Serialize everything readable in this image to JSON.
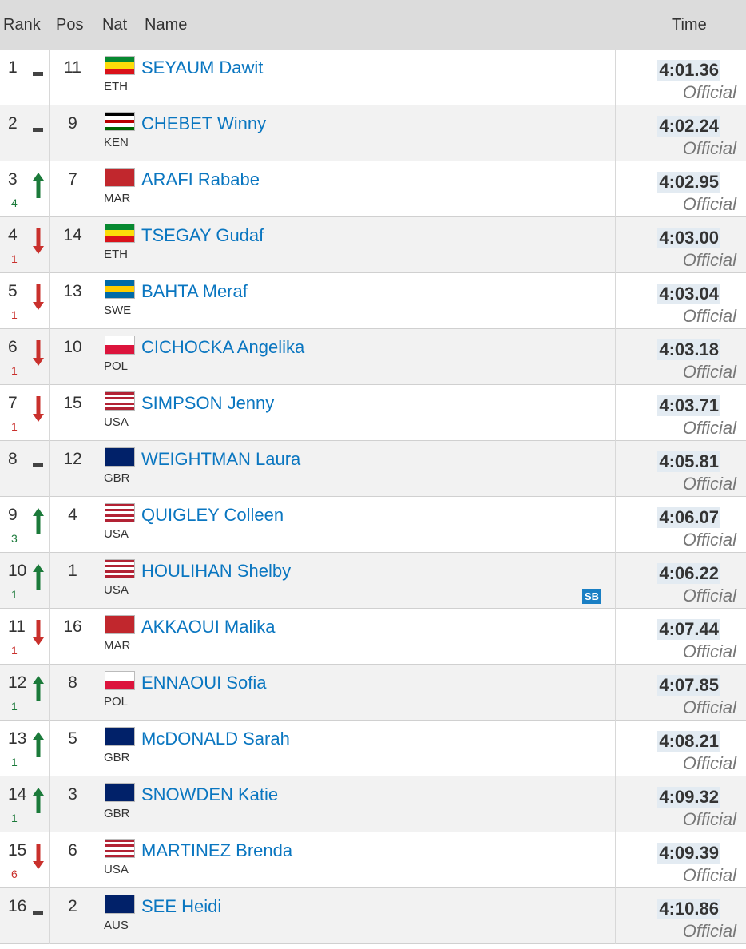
{
  "header": {
    "rank": "Rank",
    "pos": "Pos",
    "nat": "Nat",
    "name": "Name",
    "time": "Time"
  },
  "rows": [
    {
      "rank": 1,
      "trend": "same",
      "pos": 11,
      "nat": "ETH",
      "flag": [
        "#078930",
        "#fcdd09",
        "#da121a"
      ],
      "name": "SEYAUM Dawit",
      "time": "4:01.36",
      "status": "Official"
    },
    {
      "rank": 2,
      "trend": "same",
      "pos": 9,
      "nat": "KEN",
      "flag": [
        "#000000",
        "#ffffff",
        "#bb0000",
        "#ffffff",
        "#006600"
      ],
      "name": "CHEBET Winny",
      "time": "4:02.24",
      "status": "Official"
    },
    {
      "rank": 3,
      "trend": "up",
      "change": 4,
      "pos": 7,
      "nat": "MAR",
      "flag": [
        "#c1272d"
      ],
      "name": "ARAFI Rababe",
      "time": "4:02.95",
      "status": "Official"
    },
    {
      "rank": 4,
      "trend": "down",
      "change": 1,
      "pos": 14,
      "nat": "ETH",
      "flag": [
        "#078930",
        "#fcdd09",
        "#da121a"
      ],
      "name": "TSEGAY Gudaf",
      "time": "4:03.00",
      "status": "Official"
    },
    {
      "rank": 5,
      "trend": "down",
      "change": 1,
      "pos": 13,
      "nat": "SWE",
      "flag": [
        "#006aa7",
        "#fecc00",
        "#006aa7"
      ],
      "name": "BAHTA Meraf",
      "time": "4:03.04",
      "status": "Official"
    },
    {
      "rank": 6,
      "trend": "down",
      "change": 1,
      "pos": 10,
      "nat": "POL",
      "flag": [
        "#ffffff",
        "#dc143c"
      ],
      "name": "CICHOCKA Angelika",
      "time": "4:03.18",
      "status": "Official"
    },
    {
      "rank": 7,
      "trend": "down",
      "change": 1,
      "pos": 15,
      "nat": "USA",
      "flag": [
        "#b22234",
        "#ffffff",
        "#b22234",
        "#ffffff",
        "#b22234",
        "#ffffff",
        "#b22234"
      ],
      "name": "SIMPSON Jenny",
      "time": "4:03.71",
      "status": "Official"
    },
    {
      "rank": 8,
      "trend": "same",
      "pos": 12,
      "nat": "GBR",
      "flag": [
        "#012169"
      ],
      "name": "WEIGHTMAN Laura",
      "time": "4:05.81",
      "status": "Official"
    },
    {
      "rank": 9,
      "trend": "up",
      "change": 3,
      "pos": 4,
      "nat": "USA",
      "flag": [
        "#b22234",
        "#ffffff",
        "#b22234",
        "#ffffff",
        "#b22234",
        "#ffffff",
        "#b22234"
      ],
      "name": "QUIGLEY Colleen",
      "time": "4:06.07",
      "status": "Official"
    },
    {
      "rank": 10,
      "trend": "up",
      "change": 1,
      "pos": 1,
      "nat": "USA",
      "flag": [
        "#b22234",
        "#ffffff",
        "#b22234",
        "#ffffff",
        "#b22234",
        "#ffffff",
        "#b22234"
      ],
      "name": "HOULIHAN Shelby",
      "note": "SB",
      "time": "4:06.22",
      "status": "Official"
    },
    {
      "rank": 11,
      "trend": "down",
      "change": 1,
      "pos": 16,
      "nat": "MAR",
      "flag": [
        "#c1272d"
      ],
      "name": "AKKAOUI Malika",
      "time": "4:07.44",
      "status": "Official"
    },
    {
      "rank": 12,
      "trend": "up",
      "change": 1,
      "pos": 8,
      "nat": "POL",
      "flag": [
        "#ffffff",
        "#dc143c"
      ],
      "name": "ENNAOUI Sofia",
      "time": "4:07.85",
      "status": "Official"
    },
    {
      "rank": 13,
      "trend": "up",
      "change": 1,
      "pos": 5,
      "nat": "GBR",
      "flag": [
        "#012169"
      ],
      "name": "McDONALD Sarah",
      "time": "4:08.21",
      "status": "Official"
    },
    {
      "rank": 14,
      "trend": "up",
      "change": 1,
      "pos": 3,
      "nat": "GBR",
      "flag": [
        "#012169"
      ],
      "name": "SNOWDEN Katie",
      "time": "4:09.32",
      "status": "Official"
    },
    {
      "rank": 15,
      "trend": "down",
      "change": 6,
      "pos": 6,
      "nat": "USA",
      "flag": [
        "#b22234",
        "#ffffff",
        "#b22234",
        "#ffffff",
        "#b22234",
        "#ffffff",
        "#b22234"
      ],
      "name": "MARTINEZ Brenda",
      "time": "4:09.39",
      "status": "Official"
    },
    {
      "rank": 16,
      "trend": "same",
      "pos": 2,
      "nat": "AUS",
      "flag": [
        "#012169"
      ],
      "name": "SEE Heidi",
      "time": "4:10.86",
      "status": "Official"
    }
  ]
}
